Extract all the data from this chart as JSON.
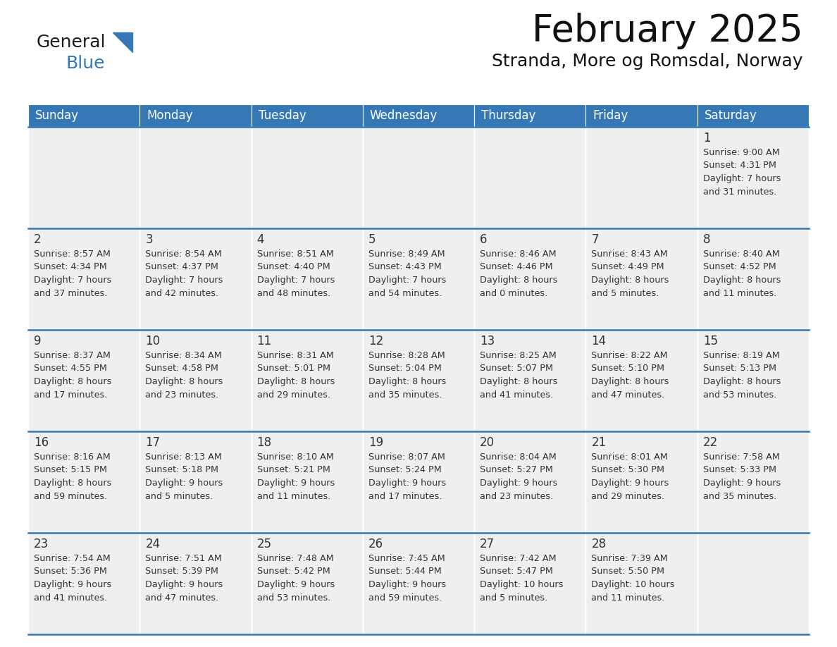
{
  "title": "February 2025",
  "subtitle": "Stranda, More og Romsdal, Norway",
  "header_color": "#3578b5",
  "header_text_color": "#ffffff",
  "cell_bg_color": "#efefef",
  "empty_cell_bg": "#efefef",
  "border_color": "#3578b5",
  "text_color": "#333333",
  "days_of_week": [
    "Sunday",
    "Monday",
    "Tuesday",
    "Wednesday",
    "Thursday",
    "Friday",
    "Saturday"
  ],
  "weeks": [
    [
      {
        "day": null,
        "info": null
      },
      {
        "day": null,
        "info": null
      },
      {
        "day": null,
        "info": null
      },
      {
        "day": null,
        "info": null
      },
      {
        "day": null,
        "info": null
      },
      {
        "day": null,
        "info": null
      },
      {
        "day": 1,
        "info": "Sunrise: 9:00 AM\nSunset: 4:31 PM\nDaylight: 7 hours\nand 31 minutes."
      }
    ],
    [
      {
        "day": 2,
        "info": "Sunrise: 8:57 AM\nSunset: 4:34 PM\nDaylight: 7 hours\nand 37 minutes."
      },
      {
        "day": 3,
        "info": "Sunrise: 8:54 AM\nSunset: 4:37 PM\nDaylight: 7 hours\nand 42 minutes."
      },
      {
        "day": 4,
        "info": "Sunrise: 8:51 AM\nSunset: 4:40 PM\nDaylight: 7 hours\nand 48 minutes."
      },
      {
        "day": 5,
        "info": "Sunrise: 8:49 AM\nSunset: 4:43 PM\nDaylight: 7 hours\nand 54 minutes."
      },
      {
        "day": 6,
        "info": "Sunrise: 8:46 AM\nSunset: 4:46 PM\nDaylight: 8 hours\nand 0 minutes."
      },
      {
        "day": 7,
        "info": "Sunrise: 8:43 AM\nSunset: 4:49 PM\nDaylight: 8 hours\nand 5 minutes."
      },
      {
        "day": 8,
        "info": "Sunrise: 8:40 AM\nSunset: 4:52 PM\nDaylight: 8 hours\nand 11 minutes."
      }
    ],
    [
      {
        "day": 9,
        "info": "Sunrise: 8:37 AM\nSunset: 4:55 PM\nDaylight: 8 hours\nand 17 minutes."
      },
      {
        "day": 10,
        "info": "Sunrise: 8:34 AM\nSunset: 4:58 PM\nDaylight: 8 hours\nand 23 minutes."
      },
      {
        "day": 11,
        "info": "Sunrise: 8:31 AM\nSunset: 5:01 PM\nDaylight: 8 hours\nand 29 minutes."
      },
      {
        "day": 12,
        "info": "Sunrise: 8:28 AM\nSunset: 5:04 PM\nDaylight: 8 hours\nand 35 minutes."
      },
      {
        "day": 13,
        "info": "Sunrise: 8:25 AM\nSunset: 5:07 PM\nDaylight: 8 hours\nand 41 minutes."
      },
      {
        "day": 14,
        "info": "Sunrise: 8:22 AM\nSunset: 5:10 PM\nDaylight: 8 hours\nand 47 minutes."
      },
      {
        "day": 15,
        "info": "Sunrise: 8:19 AM\nSunset: 5:13 PM\nDaylight: 8 hours\nand 53 minutes."
      }
    ],
    [
      {
        "day": 16,
        "info": "Sunrise: 8:16 AM\nSunset: 5:15 PM\nDaylight: 8 hours\nand 59 minutes."
      },
      {
        "day": 17,
        "info": "Sunrise: 8:13 AM\nSunset: 5:18 PM\nDaylight: 9 hours\nand 5 minutes."
      },
      {
        "day": 18,
        "info": "Sunrise: 8:10 AM\nSunset: 5:21 PM\nDaylight: 9 hours\nand 11 minutes."
      },
      {
        "day": 19,
        "info": "Sunrise: 8:07 AM\nSunset: 5:24 PM\nDaylight: 9 hours\nand 17 minutes."
      },
      {
        "day": 20,
        "info": "Sunrise: 8:04 AM\nSunset: 5:27 PM\nDaylight: 9 hours\nand 23 minutes."
      },
      {
        "day": 21,
        "info": "Sunrise: 8:01 AM\nSunset: 5:30 PM\nDaylight: 9 hours\nand 29 minutes."
      },
      {
        "day": 22,
        "info": "Sunrise: 7:58 AM\nSunset: 5:33 PM\nDaylight: 9 hours\nand 35 minutes."
      }
    ],
    [
      {
        "day": 23,
        "info": "Sunrise: 7:54 AM\nSunset: 5:36 PM\nDaylight: 9 hours\nand 41 minutes."
      },
      {
        "day": 24,
        "info": "Sunrise: 7:51 AM\nSunset: 5:39 PM\nDaylight: 9 hours\nand 47 minutes."
      },
      {
        "day": 25,
        "info": "Sunrise: 7:48 AM\nSunset: 5:42 PM\nDaylight: 9 hours\nand 53 minutes."
      },
      {
        "day": 26,
        "info": "Sunrise: 7:45 AM\nSunset: 5:44 PM\nDaylight: 9 hours\nand 59 minutes."
      },
      {
        "day": 27,
        "info": "Sunrise: 7:42 AM\nSunset: 5:47 PM\nDaylight: 10 hours\nand 5 minutes."
      },
      {
        "day": 28,
        "info": "Sunrise: 7:39 AM\nSunset: 5:50 PM\nDaylight: 10 hours\nand 11 minutes."
      },
      {
        "day": null,
        "info": null
      }
    ]
  ],
  "logo_general_color": "#1a1a1a",
  "logo_blue_color": "#3578b5",
  "logo_triangle_color": "#3578b5"
}
